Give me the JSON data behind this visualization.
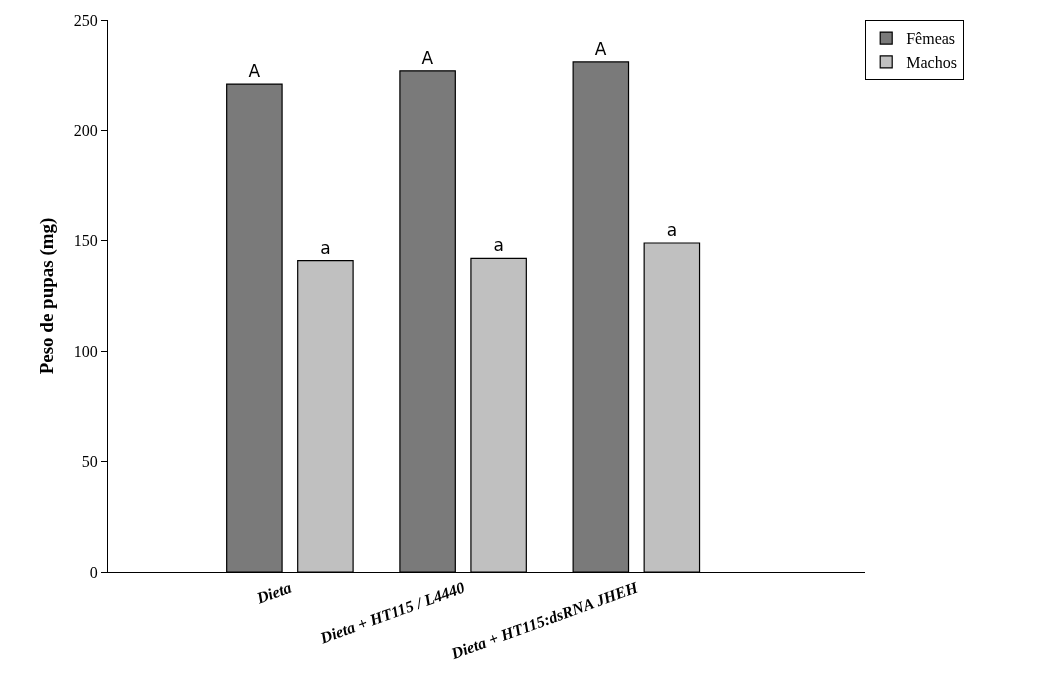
{
  "chart_data": {
    "type": "bar",
    "ylabel": "Peso de pupas (mg)",
    "categories": [
      "Dieta",
      "Dieta + HT115 / L4440",
      "Dieta + HT115:dsRNA JHEH"
    ],
    "series": [
      {
        "name": "Fêmeas",
        "color": "#7a7a7a",
        "values": [
          221,
          227,
          231
        ],
        "value_labels": [
          "A",
          "A",
          "A"
        ]
      },
      {
        "name": "Machos",
        "color": "#c0c0c0",
        "values": [
          141,
          142,
          149
        ],
        "value_labels": [
          "a",
          "a",
          "a"
        ]
      }
    ],
    "ylim": [
      0,
      250
    ],
    "yticks": [
      0,
      50,
      100,
      150,
      200,
      250
    ],
    "legend": "top right"
  }
}
